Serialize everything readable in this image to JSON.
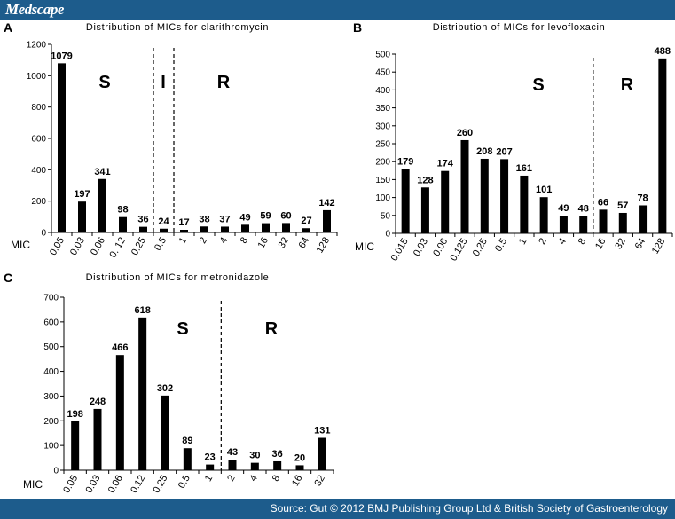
{
  "header": {
    "brand": "Medscape"
  },
  "footer": {
    "source": "Source: Gut © 2012 BMJ Publishing Group Ltd & British Society of Gastroenterology"
  },
  "colors": {
    "bar": "#000000",
    "header_bg": "#1d5c8c",
    "header_text": "#ffffff"
  },
  "chart_data": [
    {
      "panel": "A",
      "type": "bar",
      "title": "Distribution of MICs for clarithromycin",
      "xlabel": "MIC",
      "categories": [
        "0.05",
        "0.03",
        "0.06",
        "0. 12",
        "0.25",
        "0.5",
        "1",
        "2",
        "4",
        "8",
        "16",
        "32",
        "64",
        "128"
      ],
      "values": [
        1079,
        197,
        341,
        98,
        36,
        24,
        17,
        38,
        37,
        49,
        59,
        60,
        27,
        142
      ],
      "data_labels": [
        "1079",
        "197",
        "341",
        "98",
        "36",
        "24",
        "17",
        "38",
        "37",
        "49",
        "59",
        "60",
        "27",
        "142"
      ],
      "ylim": [
        0,
        1200
      ],
      "yticks": [
        0,
        200,
        400,
        600,
        800,
        1000,
        1200
      ],
      "ytick_labels": [
        "0",
        "200",
        "400",
        "600",
        "800",
        "1000",
        "1200"
      ],
      "region_labels": [
        "S",
        "I",
        "R"
      ],
      "dividers_after_index": [
        4,
        5
      ]
    },
    {
      "panel": "B",
      "type": "bar",
      "title": "Distribution of MICs for levofloxacin",
      "xlabel": "MIC",
      "categories": [
        "0.015",
        "0.03",
        "0.06",
        "0.125",
        "0.25",
        "0.5",
        "1",
        "2",
        "4",
        "8",
        "16",
        "32",
        "64",
        "128"
      ],
      "values": [
        179,
        128,
        174,
        260,
        208,
        207,
        161,
        101,
        49,
        48,
        66,
        57,
        78,
        488
      ],
      "data_labels": [
        "179",
        "128",
        "174",
        "260",
        "208",
        "207",
        "161",
        "101",
        "49",
        "48",
        "66",
        "57",
        "78",
        "488"
      ],
      "ylim": [
        0,
        500
      ],
      "yticks": [
        0,
        50,
        100,
        150,
        200,
        250,
        300,
        350,
        400,
        450,
        500
      ],
      "ytick_labels": [
        "0",
        "50",
        "100",
        "150",
        "200",
        "250",
        "300",
        "350",
        "400",
        "450",
        "500"
      ],
      "region_labels": [
        "S",
        "R"
      ],
      "dividers_after_index": [
        9
      ]
    },
    {
      "panel": "C",
      "type": "bar",
      "title": "Distribution of MICs for metronidazole",
      "xlabel": "MIC",
      "categories": [
        "0.05",
        "0.03",
        "0.06",
        "0.12",
        "0.25",
        "0.5",
        "1",
        "2",
        "4",
        "8",
        "16",
        "32"
      ],
      "values": [
        198,
        248,
        466,
        618,
        302,
        89,
        23,
        43,
        30,
        36,
        20,
        131
      ],
      "data_labels": [
        "198",
        "248",
        "466",
        "618",
        "302",
        "89",
        "23",
        "43",
        "30",
        "36",
        "20",
        "131"
      ],
      "ylim": [
        0,
        700
      ],
      "yticks": [
        0,
        100,
        200,
        300,
        400,
        500,
        600,
        700
      ],
      "ytick_labels": [
        "0",
        "100",
        "200",
        "300",
        "400",
        "500",
        "600",
        "700"
      ],
      "region_labels": [
        "S",
        "R"
      ],
      "dividers_after_index": [
        6
      ]
    }
  ]
}
